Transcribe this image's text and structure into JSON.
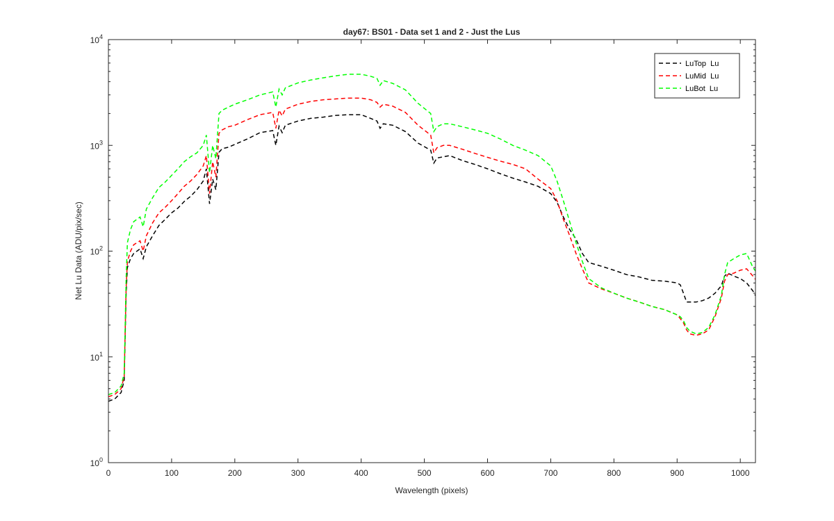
{
  "chart_data": {
    "type": "line",
    "title": "day67: BS01 - Data set 1 and 2 - Just the Lus",
    "xlabel": "Wavelength (pixels)",
    "ylabel": "Net Lu Data (ADU/pix/sec)",
    "xlim": [
      0,
      1024
    ],
    "ylim": [
      1,
      10000
    ],
    "yscale": "log",
    "grid": false,
    "legend_position": "top-right",
    "x_ticks": [
      "0",
      "100",
      "200",
      "300",
      "400",
      "500",
      "600",
      "700",
      "800",
      "900",
      "1000"
    ],
    "y_ticks": [
      {
        "base": "10",
        "exp": "0"
      },
      {
        "base": "10",
        "exp": "1"
      },
      {
        "base": "10",
        "exp": "2"
      },
      {
        "base": "10",
        "exp": "3"
      },
      {
        "base": "10",
        "exp": "4"
      }
    ],
    "x": [
      0,
      10,
      20,
      25,
      28,
      30,
      35,
      40,
      50,
      55,
      60,
      70,
      80,
      90,
      100,
      110,
      120,
      130,
      140,
      150,
      155,
      160,
      165,
      170,
      175,
      180,
      190,
      200,
      220,
      240,
      260,
      265,
      270,
      275,
      280,
      300,
      320,
      340,
      360,
      380,
      400,
      415,
      425,
      430,
      435,
      450,
      470,
      490,
      510,
      515,
      520,
      530,
      540,
      560,
      580,
      600,
      620,
      640,
      660,
      680,
      700,
      710,
      720,
      730,
      740,
      750,
      760,
      780,
      800,
      820,
      840,
      860,
      880,
      900,
      905,
      910,
      915,
      920,
      930,
      940,
      950,
      960,
      970,
      975,
      980,
      990,
      1000,
      1010,
      1020,
      1024
    ],
    "series": [
      {
        "name": "LuTop  Lu",
        "color": "#000000",
        "values": [
          3.8,
          4.0,
          4.6,
          6.0,
          40,
          70,
          85,
          95,
          105,
          85,
          110,
          140,
          175,
          200,
          230,
          255,
          295,
          330,
          380,
          460,
          600,
          280,
          480,
          380,
          860,
          930,
          960,
          1020,
          1150,
          1320,
          1380,
          1000,
          1520,
          1320,
          1550,
          1700,
          1800,
          1850,
          1920,
          1950,
          1950,
          1800,
          1700,
          1450,
          1600,
          1550,
          1350,
          1050,
          900,
          680,
          760,
          780,
          800,
          720,
          660,
          600,
          540,
          490,
          450,
          410,
          350,
          290,
          210,
          160,
          130,
          95,
          78,
          72,
          66,
          60,
          57,
          53,
          52,
          50,
          48,
          40,
          33,
          33,
          33,
          34,
          36,
          40,
          47,
          58,
          62,
          58,
          55,
          50,
          42,
          38
        ]
      },
      {
        "name": "LuMid  Lu",
        "color": "#ff0000",
        "values": [
          4.2,
          4.4,
          5.0,
          6.5,
          45,
          80,
          100,
          115,
          125,
          100,
          140,
          185,
          230,
          260,
          300,
          350,
          410,
          460,
          530,
          640,
          800,
          350,
          700,
          500,
          1300,
          1400,
          1500,
          1550,
          1750,
          1950,
          2050,
          1450,
          2150,
          1900,
          2200,
          2450,
          2600,
          2700,
          2750,
          2800,
          2800,
          2700,
          2550,
          2300,
          2450,
          2350,
          2050,
          1550,
          1250,
          850,
          950,
          1000,
          1000,
          920,
          840,
          770,
          710,
          660,
          600,
          480,
          390,
          300,
          200,
          140,
          95,
          68,
          50,
          44,
          40,
          36,
          33,
          30,
          28,
          25,
          23,
          21,
          18,
          16.5,
          16,
          16.5,
          18,
          24,
          36,
          52,
          60,
          62,
          66,
          68,
          58,
          54
        ]
      },
      {
        "name": "LuBot  Lu",
        "color": "#00ff00",
        "values": [
          4.4,
          4.6,
          5.3,
          7.0,
          55,
          120,
          160,
          190,
          210,
          170,
          250,
          320,
          400,
          450,
          520,
          600,
          700,
          780,
          850,
          1000,
          1250,
          550,
          1000,
          750,
          2000,
          2150,
          2300,
          2450,
          2700,
          3000,
          3200,
          2300,
          3400,
          3000,
          3500,
          3900,
          4150,
          4350,
          4550,
          4700,
          4700,
          4500,
          4300,
          3700,
          4100,
          3850,
          3350,
          2500,
          2000,
          1350,
          1500,
          1600,
          1600,
          1500,
          1400,
          1300,
          1150,
          1000,
          900,
          800,
          640,
          460,
          300,
          190,
          120,
          80,
          55,
          45,
          40,
          36,
          33,
          30,
          28,
          25,
          24,
          22,
          19,
          17.5,
          16.5,
          17,
          19,
          25,
          38,
          60,
          78,
          85,
          92,
          95,
          70,
          65
        ]
      }
    ]
  }
}
